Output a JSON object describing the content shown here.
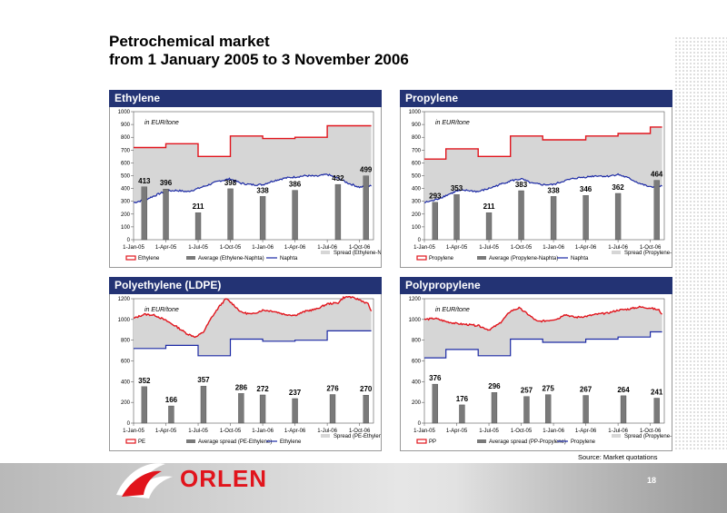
{
  "page": {
    "title_line1": "Petrochemical market",
    "title_line2": "from 1 January 2005 to  3 November 2006",
    "source": "Source: Market quotations",
    "brand": "ORLEN",
    "page_number": "18"
  },
  "colors": {
    "header": "#233374",
    "product": "#e1141c",
    "naphtha": "#1c2aa5",
    "spread_fill": "#d6d6d6",
    "bar": "#7a7a7a"
  },
  "chart_data": [
    {
      "type": "bar",
      "title": "Ethylene",
      "unit_note": "in EUR/tone",
      "ylim": [
        0,
        1000
      ],
      "yticks": [
        0,
        100,
        200,
        300,
        400,
        500,
        600,
        700,
        800,
        900,
        1000
      ],
      "xticks": [
        "1-Jan-05",
        "1-Apr-05",
        "1-Jul-05",
        "1-Oct-05",
        "1-Jan-06",
        "1-Apr-06",
        "1-Jul-06",
        "1-Oct-06"
      ],
      "bar_months": [
        1,
        3,
        6,
        9,
        12,
        15,
        19,
        21.6
      ],
      "bar_values": [
        413,
        396,
        211,
        398,
        338,
        386,
        432,
        499
      ],
      "product_steps": [
        [
          0,
          720
        ],
        [
          3,
          750
        ],
        [
          6,
          650
        ],
        [
          9,
          810
        ],
        [
          12,
          790
        ],
        [
          15,
          800
        ],
        [
          18,
          890
        ],
        [
          22.1,
          890
        ]
      ],
      "naphtha": [
        [
          0,
          290
        ],
        [
          1,
          310
        ],
        [
          2,
          345
        ],
        [
          3,
          380
        ],
        [
          4,
          385
        ],
        [
          5,
          375
        ],
        [
          6,
          400
        ],
        [
          7,
          430
        ],
        [
          8,
          460
        ],
        [
          9,
          475
        ],
        [
          10,
          440
        ],
        [
          11,
          430
        ],
        [
          12,
          430
        ],
        [
          13,
          460
        ],
        [
          14,
          480
        ],
        [
          15,
          490
        ],
        [
          16,
          500
        ],
        [
          17,
          495
        ],
        [
          18,
          510
        ],
        [
          19,
          480
        ],
        [
          20,
          440
        ],
        [
          21,
          410
        ],
        [
          22.1,
          420
        ]
      ],
      "legend": [
        "Ethylene",
        "Average (Ethylene-Naphta)",
        "Naphta",
        "Spread (Ethylene-Naphta)"
      ]
    },
    {
      "type": "bar",
      "title": "Propylene",
      "unit_note": "in EUR/tone",
      "ylim": [
        0,
        1000
      ],
      "yticks": [
        0,
        100,
        200,
        300,
        400,
        500,
        600,
        700,
        800,
        900,
        1000
      ],
      "xticks": [
        "1-Jan-05",
        "1-Apr-05",
        "1-Jul-05",
        "1-Oct-05",
        "1-Jan-06",
        "1-Apr-06",
        "1-Jul-06",
        "1-Oct-06"
      ],
      "bar_months": [
        1,
        3,
        6,
        9,
        12,
        15,
        18,
        21.6
      ],
      "bar_values": [
        293,
        353,
        211,
        383,
        338,
        346,
        362,
        464
      ],
      "product_steps": [
        [
          0,
          630
        ],
        [
          2,
          710
        ],
        [
          5,
          650
        ],
        [
          8,
          810
        ],
        [
          11,
          780
        ],
        [
          15,
          810
        ],
        [
          18,
          830
        ],
        [
          21,
          880
        ],
        [
          22.1,
          880
        ]
      ],
      "naphtha": [
        [
          0,
          290
        ],
        [
          1,
          310
        ],
        [
          2,
          345
        ],
        [
          3,
          380
        ],
        [
          4,
          385
        ],
        [
          5,
          375
        ],
        [
          6,
          400
        ],
        [
          7,
          430
        ],
        [
          8,
          460
        ],
        [
          9,
          475
        ],
        [
          10,
          440
        ],
        [
          11,
          430
        ],
        [
          12,
          430
        ],
        [
          13,
          460
        ],
        [
          14,
          480
        ],
        [
          15,
          490
        ],
        [
          16,
          500
        ],
        [
          17,
          495
        ],
        [
          18,
          510
        ],
        [
          19,
          480
        ],
        [
          20,
          440
        ],
        [
          21,
          410
        ],
        [
          22.1,
          420
        ]
      ],
      "legend": [
        "Propylene",
        "Average (Propylene-Naphta)",
        "Naphta",
        "Spread (Propylene-Naphta)"
      ]
    },
    {
      "type": "bar",
      "title": "Polyethylene (LDPE)",
      "unit_note": "in EUR/tone",
      "ylim": [
        0,
        1200
      ],
      "yticks": [
        0,
        200,
        400,
        600,
        800,
        1000,
        1200
      ],
      "xticks": [
        "1-Jan-05",
        "1-Apr-05",
        "1-Jul-05",
        "1-Oct-05",
        "1-Jan-06",
        "1-Apr-06",
        "1-Jul-06",
        "1-Oct-06"
      ],
      "bar_months": [
        1,
        3.5,
        6.5,
        10,
        12,
        15,
        18.5,
        21.6
      ],
      "bar_values": [
        352,
        166,
        357,
        286,
        272,
        237,
        276,
        270
      ],
      "product": [
        [
          0,
          1010
        ],
        [
          1,
          1050
        ],
        [
          2,
          1040
        ],
        [
          3,
          990
        ],
        [
          4,
          930
        ],
        [
          5,
          860
        ],
        [
          5.8,
          830
        ],
        [
          6.5,
          880
        ],
        [
          7.2,
          1010
        ],
        [
          8,
          1130
        ],
        [
          8.6,
          1200
        ],
        [
          9.2,
          1150
        ],
        [
          10,
          1070
        ],
        [
          11,
          1050
        ],
        [
          12,
          1090
        ],
        [
          13,
          1080
        ],
        [
          14,
          1050
        ],
        [
          15,
          1040
        ],
        [
          16,
          1080
        ],
        [
          17,
          1100
        ],
        [
          18,
          1150
        ],
        [
          19,
          1160
        ],
        [
          19.5,
          1210
        ],
        [
          20,
          1220
        ],
        [
          21,
          1190
        ],
        [
          21.8,
          1150
        ],
        [
          22.1,
          1080
        ]
      ],
      "base_steps": [
        [
          0,
          720
        ],
        [
          3,
          750
        ],
        [
          6,
          650
        ],
        [
          9,
          810
        ],
        [
          12,
          790
        ],
        [
          15,
          800
        ],
        [
          18,
          890
        ],
        [
          22.1,
          890
        ]
      ],
      "legend": [
        "PE",
        "Average spread (PE-Ethylene)",
        "Ethylene",
        "Spread (PE-Ethylene)"
      ]
    },
    {
      "type": "bar",
      "title": "Polypropylene",
      "unit_note": "in EUR/tone",
      "ylim": [
        0,
        1200
      ],
      "yticks": [
        0,
        200,
        400,
        600,
        800,
        1000,
        1200
      ],
      "xticks": [
        "1-Jan-05",
        "1-Apr-05",
        "1-Jul-05",
        "1-Oct-05",
        "1-Jan-06",
        "1-Apr-06",
        "1-Jul-06",
        "1-Oct-06"
      ],
      "bar_months": [
        1,
        3.5,
        6.5,
        9.5,
        11.5,
        15,
        18.5,
        21.6
      ],
      "bar_values": [
        376,
        176,
        296,
        257,
        275,
        267,
        264,
        241
      ],
      "product": [
        [
          0,
          1000
        ],
        [
          1,
          1010
        ],
        [
          2,
          980
        ],
        [
          3,
          960
        ],
        [
          4,
          950
        ],
        [
          5,
          940
        ],
        [
          6,
          900
        ],
        [
          7,
          960
        ],
        [
          8,
          1080
        ],
        [
          8.8,
          1110
        ],
        [
          9.5,
          1060
        ],
        [
          10.5,
          980
        ],
        [
          11.5,
          990
        ],
        [
          12.5,
          1010
        ],
        [
          13,
          1050
        ],
        [
          14,
          1020
        ],
        [
          15,
          1030
        ],
        [
          16,
          1050
        ],
        [
          17,
          1060
        ],
        [
          18,
          1090
        ],
        [
          19,
          1100
        ],
        [
          20,
          1120
        ],
        [
          21,
          1110
        ],
        [
          21.8,
          1090
        ],
        [
          22.1,
          1050
        ]
      ],
      "base_steps": [
        [
          0,
          630
        ],
        [
          2,
          710
        ],
        [
          5,
          650
        ],
        [
          8,
          810
        ],
        [
          11,
          780
        ],
        [
          15,
          810
        ],
        [
          18,
          830
        ],
        [
          21,
          880
        ],
        [
          22.1,
          880
        ]
      ],
      "legend": [
        "PP",
        "Average spread (PP-Propylene)",
        "Propylene",
        "Spread (Propylene-Naphta)"
      ]
    }
  ]
}
